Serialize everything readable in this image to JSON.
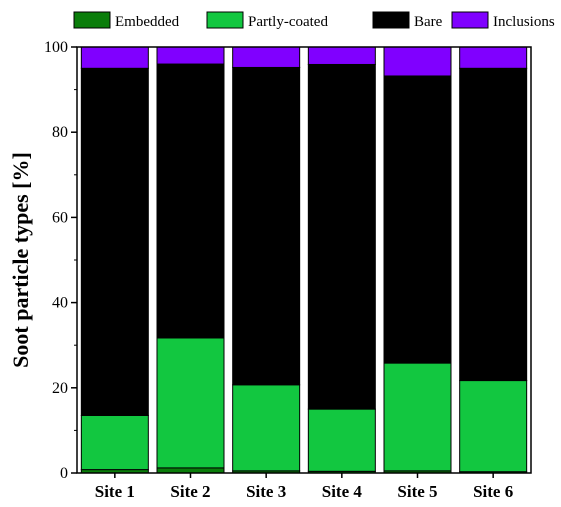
{
  "chart_data": {
    "type": "bar",
    "stacked": true,
    "title": "",
    "xlabel": "",
    "ylabel": "Soot particle types [%]",
    "ylim": [
      0,
      100
    ],
    "yticks": [
      0,
      20,
      40,
      60,
      80,
      100
    ],
    "grid": false,
    "legend_position": "top",
    "categories": [
      "Site 1",
      "Site 2",
      "Site 3",
      "Site 4",
      "Site 5",
      "Site 6"
    ],
    "series": [
      {
        "name": "Embedded",
        "color": "#0a7d0a",
        "values": [
          0.8,
          1.2,
          0.5,
          0.4,
          0.5,
          0.3
        ]
      },
      {
        "name": "Partly-coated",
        "color": "#12c740",
        "values": [
          12.7,
          30.5,
          20.2,
          14.6,
          25.3,
          21.4
        ]
      },
      {
        "name": "Bare",
        "color": "#000000",
        "values": [
          81.5,
          64.3,
          74.5,
          80.9,
          67.4,
          73.3
        ]
      },
      {
        "name": "Inclusions",
        "color": "#8000ff",
        "values": [
          5.0,
          4.0,
          4.8,
          4.1,
          6.8,
          5.0
        ]
      }
    ]
  }
}
